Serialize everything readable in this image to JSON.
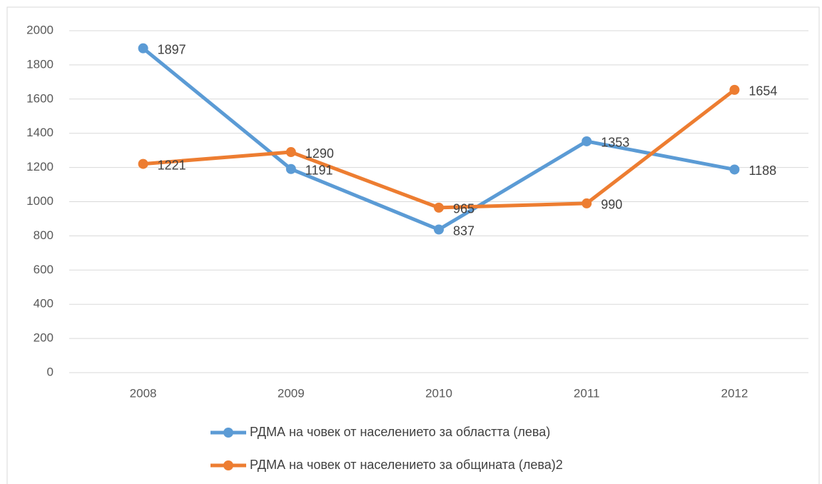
{
  "chart_data": {
    "type": "line",
    "categories": [
      "2008",
      "2009",
      "2010",
      "2011",
      "2012"
    ],
    "series": [
      {
        "name": "РДМА на човек от населението за областта (лева)",
        "color": "#5b9bd5",
        "values": [
          1897,
          1191,
          837,
          1353,
          1188
        ]
      },
      {
        "name": "РДМА на човек от населението за общината (лева)2",
        "color": "#ed7d31",
        "values": [
          1221,
          1290,
          965,
          990,
          1654
        ]
      }
    ],
    "ylim": [
      0,
      2000
    ],
    "yticks": [
      0,
      200,
      400,
      600,
      800,
      1000,
      1200,
      1400,
      1600,
      1800,
      2000
    ],
    "grid": true,
    "legend": "bottom",
    "data_labels": true
  }
}
